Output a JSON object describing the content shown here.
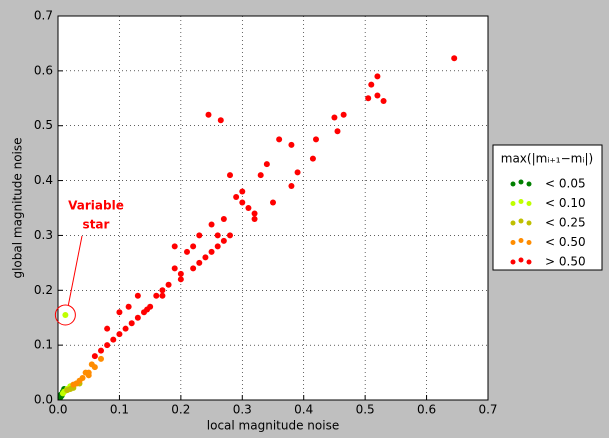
{
  "chart_data": {
    "type": "scatter",
    "xlabel": "local magnitude noise",
    "ylabel": "global magnitude noise",
    "xlim": [
      0,
      0.7
    ],
    "ylim": [
      0,
      0.7
    ],
    "xticks": [
      {
        "value": 0,
        "label": "0.0"
      },
      0.1,
      0.2,
      0.3,
      0.4,
      0.5,
      0.6,
      0.7
    ],
    "yticks": [
      {
        "value": 0,
        "label": "0.0"
      },
      0.1,
      0.2,
      0.3,
      0.4,
      0.5,
      0.6,
      0.7
    ],
    "grid": true,
    "legend_title": "max(|mᵢ₊₁−mᵢ|)",
    "legend_position": "right",
    "annotation": {
      "lines": [
        "Variable",
        "star"
      ],
      "x": 0.012,
      "y": 0.155,
      "color": "#ff0000"
    },
    "series": [
      {
        "name": "< 0.05",
        "color": "#008000",
        "x": [
          0.005,
          0.008,
          0.01,
          0.006,
          0.012,
          0.004
        ],
        "y": [
          0.01,
          0.015,
          0.02,
          0.008,
          0.018,
          0.005
        ]
      },
      {
        "name": "< 0.10",
        "color": "#bfff00",
        "x": [
          0.012,
          0.01,
          0.015,
          0.02,
          0.008
        ],
        "y": [
          0.155,
          0.015,
          0.02,
          0.025,
          0.012
        ]
      },
      {
        "name": "< 0.25",
        "color": "#bfbf00",
        "x": [
          0.02,
          0.025,
          0.03,
          0.015,
          0.035
        ],
        "y": [
          0.02,
          0.022,
          0.03,
          0.018,
          0.03
        ]
      },
      {
        "name": "< 0.50",
        "color": "#ff8c00",
        "x": [
          0.03,
          0.04,
          0.05,
          0.06,
          0.045,
          0.055,
          0.035,
          0.07,
          0.025,
          0.05
        ],
        "y": [
          0.03,
          0.04,
          0.05,
          0.06,
          0.05,
          0.065,
          0.035,
          0.075,
          0.028,
          0.045
        ]
      },
      {
        "name": "> 0.50",
        "color": "#ff0000",
        "x": [
          0.645,
          0.52,
          0.51,
          0.53,
          0.52,
          0.505,
          0.465,
          0.45,
          0.455,
          0.42,
          0.245,
          0.265,
          0.38,
          0.36,
          0.415,
          0.39,
          0.34,
          0.33,
          0.3,
          0.28,
          0.29,
          0.31,
          0.3,
          0.32,
          0.26,
          0.25,
          0.27,
          0.22,
          0.21,
          0.2,
          0.23,
          0.18,
          0.19,
          0.17,
          0.15,
          0.16,
          0.13,
          0.14,
          0.12,
          0.13,
          0.11,
          0.1,
          0.09,
          0.08,
          0.07,
          0.06,
          0.25,
          0.28,
          0.24,
          0.22,
          0.2,
          0.17,
          0.145,
          0.115,
          0.1,
          0.27,
          0.26,
          0.32,
          0.35,
          0.38,
          0.23,
          0.19,
          0.08
        ],
        "y": [
          0.623,
          0.59,
          0.575,
          0.545,
          0.555,
          0.55,
          0.52,
          0.515,
          0.49,
          0.475,
          0.52,
          0.51,
          0.465,
          0.475,
          0.44,
          0.415,
          0.43,
          0.41,
          0.38,
          0.41,
          0.37,
          0.35,
          0.36,
          0.33,
          0.3,
          0.32,
          0.33,
          0.28,
          0.27,
          0.23,
          0.25,
          0.21,
          0.24,
          0.2,
          0.17,
          0.19,
          0.15,
          0.16,
          0.14,
          0.19,
          0.13,
          0.12,
          0.11,
          0.1,
          0.09,
          0.08,
          0.27,
          0.3,
          0.26,
          0.24,
          0.22,
          0.19,
          0.165,
          0.17,
          0.16,
          0.29,
          0.28,
          0.34,
          0.36,
          0.39,
          0.3,
          0.28,
          0.13
        ]
      }
    ]
  }
}
